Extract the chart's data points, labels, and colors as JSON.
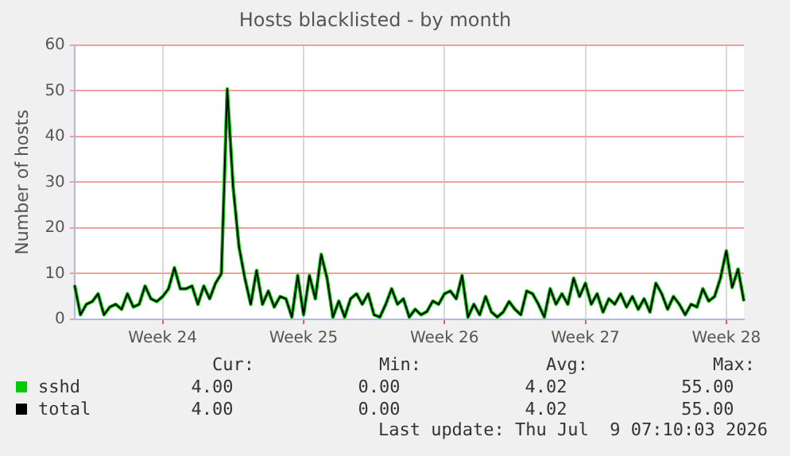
{
  "chart_data": {
    "type": "line",
    "title": "Hosts blacklisted - by month",
    "ylabel": "Number of hosts",
    "categories": [
      null,
      null,
      null,
      null,
      null,
      null,
      null,
      null,
      null,
      null,
      null,
      null,
      null,
      null,
      null,
      "Week 24",
      null,
      null,
      null,
      null,
      null,
      null,
      null,
      null,
      null,
      null,
      null,
      null,
      null,
      null,
      null,
      null,
      null,
      null,
      null,
      null,
      null,
      null,
      null,
      "Week 25",
      null,
      null,
      null,
      null,
      null,
      null,
      null,
      null,
      null,
      null,
      null,
      null,
      null,
      null,
      null,
      null,
      null,
      null,
      null,
      null,
      null,
      null,
      null,
      "Week 26",
      null,
      null,
      null,
      null,
      null,
      null,
      null,
      null,
      null,
      null,
      null,
      null,
      null,
      null,
      null,
      null,
      null,
      null,
      null,
      null,
      null,
      null,
      null,
      "Week 27",
      null,
      null,
      null,
      null,
      null,
      null,
      null,
      null,
      null,
      null,
      null,
      null,
      null,
      null,
      null,
      null,
      null,
      null,
      null,
      null,
      null,
      null,
      null,
      "Week 28",
      null,
      null,
      null
    ],
    "series": [
      {
        "name": "sshd",
        "color": "#00cc00",
        "values": [
          7.5,
          1,
          3.3,
          3.9,
          5.6,
          1,
          2.7,
          3.3,
          2.2,
          5.6,
          2.7,
          3.3,
          7.3,
          4.5,
          3.9,
          5,
          6.7,
          11.3,
          6.7,
          6.7,
          7.3,
          3.3,
          7.3,
          4.5,
          7.9,
          10,
          50.4,
          29,
          15.9,
          9,
          3.3,
          10.7,
          3.3,
          6.2,
          2.7,
          5,
          4.5,
          0.5,
          9.6,
          1,
          9.6,
          4.5,
          14.2,
          9,
          0.5,
          4,
          0.5,
          4.5,
          5.6,
          3.3,
          5.6,
          1,
          0.5,
          3.3,
          6.7,
          3.3,
          4.5,
          0.5,
          2.2,
          1,
          1.7,
          4,
          3.3,
          5.6,
          6.2,
          4.5,
          9.6,
          0.5,
          3.3,
          1,
          5,
          1.6,
          0.5,
          1.6,
          3.9,
          2.2,
          1,
          6.2,
          5.6,
          3.3,
          0.5,
          6.7,
          3.3,
          5.6,
          3.3,
          9,
          5,
          7.9,
          3.3,
          5.6,
          1.6,
          4.5,
          3.3,
          5.6,
          2.7,
          5,
          2.2,
          4.5,
          1.6,
          7.9,
          5.6,
          2.2,
          5,
          3.3,
          1,
          3.3,
          2.7,
          6.7,
          4,
          5,
          9,
          15,
          7,
          11,
          4
        ]
      },
      {
        "name": "total",
        "color": "#000000",
        "values": [
          7.5,
          1,
          3.3,
          3.9,
          5.6,
          1,
          2.7,
          3.3,
          2.2,
          5.6,
          2.7,
          3.3,
          7.3,
          4.5,
          3.9,
          5,
          6.7,
          11.3,
          6.7,
          6.7,
          7.3,
          3.3,
          7.3,
          4.5,
          7.9,
          10,
          50.4,
          29,
          15.9,
          9,
          3.3,
          10.7,
          3.3,
          6.2,
          2.7,
          5,
          4.5,
          0.5,
          9.6,
          1,
          9.6,
          4.5,
          14.2,
          9,
          0.5,
          4,
          0.5,
          4.5,
          5.6,
          3.3,
          5.6,
          1,
          0.5,
          3.3,
          6.7,
          3.3,
          4.5,
          0.5,
          2.2,
          1,
          1.7,
          4,
          3.3,
          5.6,
          6.2,
          4.5,
          9.6,
          0.5,
          3.3,
          1,
          5,
          1.6,
          0.5,
          1.6,
          3.9,
          2.2,
          1,
          6.2,
          5.6,
          3.3,
          0.5,
          6.7,
          3.3,
          5.6,
          3.3,
          9,
          5,
          7.9,
          3.3,
          5.6,
          1.6,
          4.5,
          3.3,
          5.6,
          2.7,
          5,
          2.2,
          4.5,
          1.6,
          7.9,
          5.6,
          2.2,
          5,
          3.3,
          1,
          3.3,
          2.7,
          6.7,
          4,
          5,
          9,
          15,
          7,
          11,
          4
        ]
      }
    ],
    "ylim": [
      0,
      60
    ],
    "yticks": [
      0,
      10,
      20,
      30,
      40,
      50,
      60
    ],
    "grid": true,
    "legend": "bottom left",
    "marker": "none",
    "line_style": "solid",
    "annotations": [
      "Cur:",
      "Min:",
      "Avg:",
      "Max:",
      "4.00",
      "0.00",
      "4.02",
      "55.00",
      "4.00",
      "0.00",
      "4.02",
      "55.00",
      "Last update: Thu Jul  9 07:10:03 2026"
    ]
  }
}
